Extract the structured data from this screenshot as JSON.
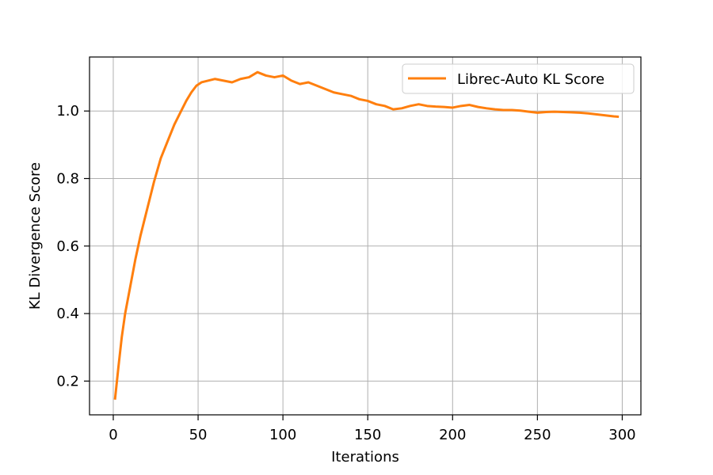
{
  "chart_data": {
    "type": "line",
    "xlabel": "Iterations",
    "ylabel": "KL Divergence Score",
    "xlim": [
      -14,
      311
    ],
    "ylim": [
      0.1,
      1.16
    ],
    "xticks": [
      0,
      50,
      100,
      150,
      200,
      250,
      300
    ],
    "yticks": [
      0.2,
      0.4,
      0.6,
      0.8,
      1.0
    ],
    "ytick_labels": [
      "0.2",
      "0.4",
      "0.6",
      "0.8",
      "1.0"
    ],
    "grid": true,
    "legend": "upper right",
    "series": [
      {
        "name": "Librec-Auto KL Score",
        "color": "#ff7f0e",
        "x": [
          1,
          3,
          5,
          7,
          10,
          13,
          16,
          20,
          24,
          28,
          32,
          36,
          40,
          43,
          46,
          49,
          52,
          56,
          60,
          65,
          70,
          75,
          80,
          85,
          90,
          95,
          100,
          105,
          110,
          115,
          120,
          125,
          130,
          135,
          140,
          145,
          150,
          155,
          160,
          165,
          170,
          175,
          180,
          185,
          190,
          195,
          200,
          205,
          210,
          215,
          220,
          225,
          230,
          235,
          240,
          245,
          250,
          255,
          260,
          265,
          270,
          275,
          280,
          285,
          290,
          295,
          298
        ],
        "y": [
          0.145,
          0.24,
          0.33,
          0.4,
          0.48,
          0.56,
          0.63,
          0.71,
          0.79,
          0.86,
          0.91,
          0.96,
          1.0,
          1.03,
          1.055,
          1.075,
          1.085,
          1.09,
          1.095,
          1.09,
          1.085,
          1.095,
          1.1,
          1.115,
          1.105,
          1.1,
          1.105,
          1.09,
          1.08,
          1.085,
          1.075,
          1.065,
          1.055,
          1.05,
          1.045,
          1.035,
          1.03,
          1.02,
          1.015,
          1.005,
          1.008,
          1.015,
          1.02,
          1.015,
          1.013,
          1.012,
          1.01,
          1.015,
          1.018,
          1.012,
          1.008,
          1.005,
          1.003,
          1.003,
          1.001,
          0.998,
          0.995,
          0.997,
          0.998,
          0.997,
          0.996,
          0.995,
          0.993,
          0.99,
          0.987,
          0.984,
          0.983
        ]
      }
    ]
  }
}
